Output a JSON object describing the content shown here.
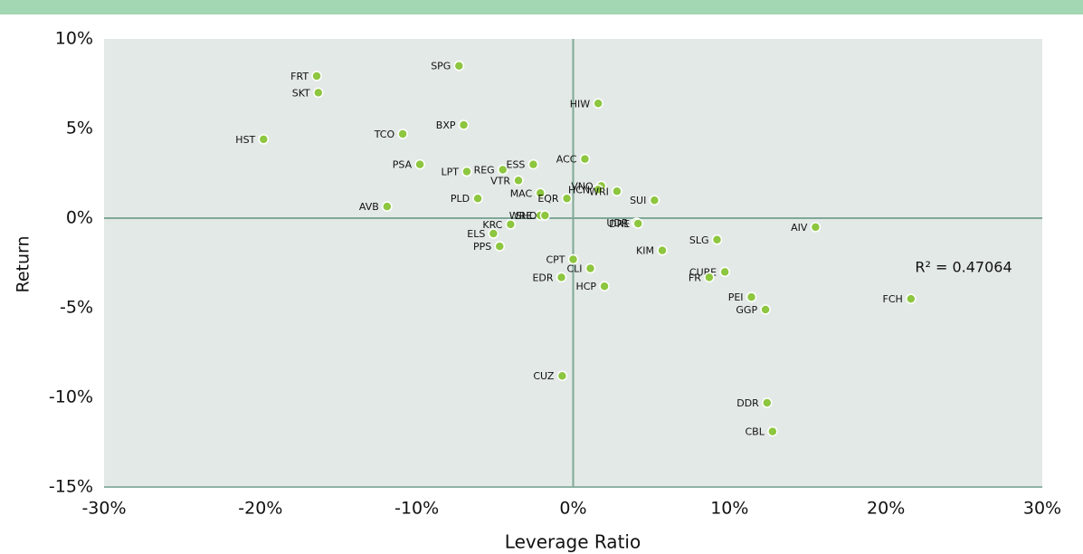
{
  "chart_data": {
    "type": "scatter",
    "x_label": "Leverage Ratio",
    "y_label": "Return",
    "annotation": "R² = 0.47064",
    "color": "#8dc63f",
    "point_labels": [
      "FRT",
      "SKT",
      "SPG",
      "HIW",
      "HST",
      "TCO",
      "BXP",
      "ACC",
      "PSA",
      "LPT",
      "REG",
      "ESS",
      "VTR",
      "VNO",
      "HCN",
      "WRI",
      "MAC",
      "PLD",
      "EQR",
      "SUI",
      "AVB",
      "WRE",
      "SHO",
      "KRC",
      "UDR",
      "DRE",
      "AIV",
      "ELS",
      "PPS",
      "SLG",
      "KIM",
      "CPT",
      "CLI",
      "CUBE",
      "FR",
      "EDR",
      "HCP",
      "PEI",
      "FCH",
      "GGP",
      "CUZ",
      "DDR",
      "CBL"
    ],
    "x": [
      -16.4,
      -16.3,
      -7.3,
      1.6,
      -19.8,
      -10.9,
      -7.0,
      0.75,
      -9.8,
      -6.8,
      -4.5,
      -2.55,
      -3.5,
      1.8,
      1.6,
      2.8,
      -2.1,
      -6.1,
      -0.4,
      5.2,
      -11.9,
      -2.1,
      -1.8,
      -4.0,
      4.05,
      4.15,
      15.5,
      -5.1,
      -4.7,
      9.2,
      5.7,
      0.0,
      1.1,
      9.7,
      8.7,
      -0.75,
      2.0,
      11.4,
      21.6,
      12.3,
      -0.7,
      12.4,
      12.75
    ],
    "values": [
      7.93,
      7.0,
      8.5,
      6.4,
      4.4,
      4.7,
      5.2,
      3.3,
      3.0,
      2.6,
      2.7,
      3.0,
      2.1,
      1.8,
      1.6,
      1.5,
      1.4,
      1.1,
      1.1,
      1.0,
      0.65,
      0.15,
      0.15,
      -0.35,
      -0.25,
      -0.3,
      -0.5,
      -0.86,
      -1.57,
      -1.2,
      -1.8,
      -2.3,
      -2.8,
      -3.0,
      -3.3,
      -3.3,
      -3.8,
      -4.4,
      -4.5,
      -5.1,
      -8.8,
      -10.3,
      -11.9
    ],
    "xlim": [
      -30,
      30
    ],
    "xticks": [
      {
        "value": -30,
        "label": "-30%"
      },
      {
        "value": -20,
        "label": "-20%"
      },
      {
        "value": -10,
        "label": "-10%"
      },
      {
        "value": 0,
        "label": "0%"
      },
      {
        "value": 10,
        "label": "10%"
      },
      {
        "value": 20,
        "label": "20%"
      },
      {
        "value": 30,
        "label": "30%"
      }
    ],
    "ylim": [
      -15,
      10
    ],
    "yticks": [
      {
        "value": 10,
        "label": "10%"
      },
      {
        "value": 5,
        "label": "5%"
      },
      {
        "value": 0,
        "label": "0%"
      },
      {
        "value": -5,
        "label": "-5%"
      },
      {
        "value": -10,
        "label": "-10%"
      },
      {
        "value": -15,
        "label": "-15%"
      }
    ]
  }
}
